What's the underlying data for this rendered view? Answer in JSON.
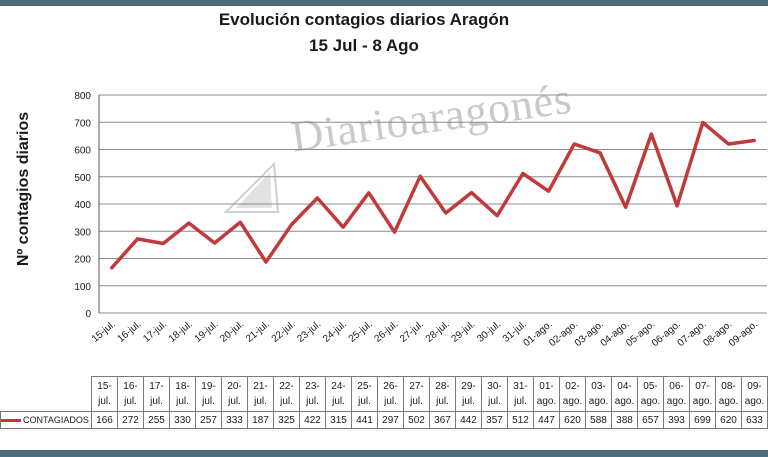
{
  "chart_data": {
    "type": "line",
    "title": "Evolución contagios diarios Aragón",
    "subtitle": "15 Jul - 8 Ago",
    "ylabel": "Nº contagios diarios",
    "xlabel": "",
    "ylim": [
      0,
      800
    ],
    "yticks": [
      "0",
      "100",
      "200",
      "300",
      "400",
      "500",
      "600",
      "700",
      "800"
    ],
    "grid": true,
    "categories": [
      "15-jul.",
      "16-jul.",
      "17-jul.",
      "18-jul.",
      "19-jul.",
      "20-jul.",
      "21-jul.",
      "22-jul.",
      "23-jul.",
      "24-jul.",
      "25-jul.",
      "26-jul.",
      "27-jul.",
      "28-jul.",
      "29-jul.",
      "30-jul.",
      "31-jul.",
      "01-ago.",
      "02-ago.",
      "03-ago.",
      "04-ago.",
      "05-ago.",
      "06-ago.",
      "07-ago.",
      "08-ago.",
      "09-ago."
    ],
    "table_categories": [
      [
        "15-",
        "jul."
      ],
      [
        "16-",
        "jul."
      ],
      [
        "17-",
        "jul."
      ],
      [
        "18-",
        "jul."
      ],
      [
        "19-",
        "jul."
      ],
      [
        "20-",
        "jul."
      ],
      [
        "21-",
        "jul."
      ],
      [
        "22-",
        "jul."
      ],
      [
        "23-",
        "jul."
      ],
      [
        "24-",
        "jul."
      ],
      [
        "25-",
        "jul."
      ],
      [
        "26-",
        "jul."
      ],
      [
        "27-",
        "jul."
      ],
      [
        "28-",
        "jul."
      ],
      [
        "29-",
        "jul."
      ],
      [
        "30-",
        "jul."
      ],
      [
        "31-",
        "jul."
      ],
      [
        "01-",
        "ago."
      ],
      [
        "02-",
        "ago."
      ],
      [
        "03-",
        "ago."
      ],
      [
        "04-",
        "ago."
      ],
      [
        "05-",
        "ago."
      ],
      [
        "06-",
        "ago."
      ],
      [
        "07-",
        "ago."
      ],
      [
        "08-",
        "ago."
      ],
      [
        "09-",
        "ago."
      ]
    ],
    "series": [
      {
        "name": "CONTAGIADOS",
        "color": "#c0393b",
        "values": [
          166,
          272,
          255,
          330,
          257,
          333,
          187,
          325,
          422,
          315,
          441,
          297,
          502,
          367,
          442,
          357,
          512,
          447,
          620,
          588,
          388,
          657,
          393,
          699,
          620,
          633
        ]
      }
    ]
  },
  "watermark": "Diarioaragonés",
  "colors": {
    "line": "#c0393b",
    "frame": "#4a6e7e",
    "grid": "#8c8c8c"
  }
}
